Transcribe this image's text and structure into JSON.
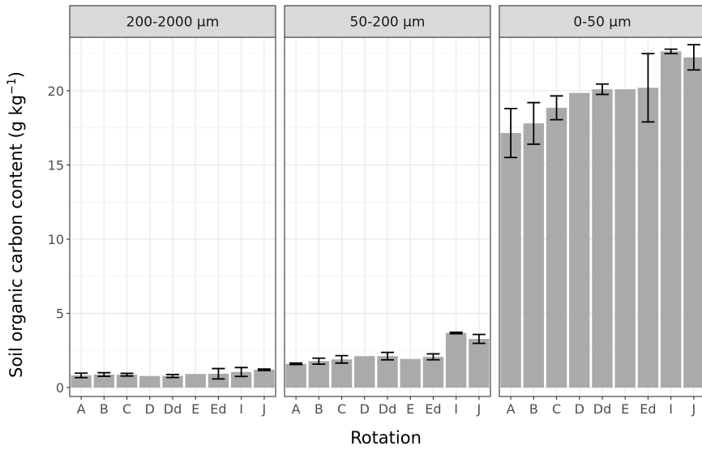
{
  "chart_data": {
    "type": "bar",
    "ylabel": "Soil organic carbon content (g kg",
    "ylabel_sup": "−1",
    "ylabel_close": ")",
    "xlabel": "Rotation",
    "ylim": [
      -0.6,
      23.6
    ],
    "yticks": [
      0,
      5,
      10,
      15,
      20
    ],
    "categories": [
      "A",
      "B",
      "C",
      "D",
      "Dd",
      "E",
      "Ed",
      "I",
      "J"
    ],
    "bar_color": "#aaaaaa",
    "strip_color": "#d9d9d9",
    "panels": [
      {
        "name": "200-2000 μm",
        "values": [
          0.82,
          0.88,
          0.87,
          0.78,
          0.78,
          0.92,
          0.93,
          1.05,
          1.2
        ],
        "errors": [
          0.15,
          0.12,
          0.09,
          null,
          0.1,
          null,
          0.35,
          0.3,
          0.05
        ]
      },
      {
        "name": "50-200 μm",
        "values": [
          1.6,
          1.78,
          1.9,
          2.12,
          2.12,
          1.93,
          2.07,
          3.68,
          3.28
        ],
        "errors": [
          0.05,
          0.2,
          0.25,
          null,
          0.25,
          null,
          0.2,
          0.05,
          0.3
        ]
      },
      {
        "name": "0-50 μm",
        "values": [
          17.15,
          17.8,
          18.85,
          19.85,
          20.1,
          20.1,
          20.2,
          22.65,
          22.25
        ],
        "errors": [
          1.65,
          1.4,
          0.8,
          null,
          0.35,
          null,
          2.3,
          0.15,
          0.85
        ]
      }
    ]
  }
}
